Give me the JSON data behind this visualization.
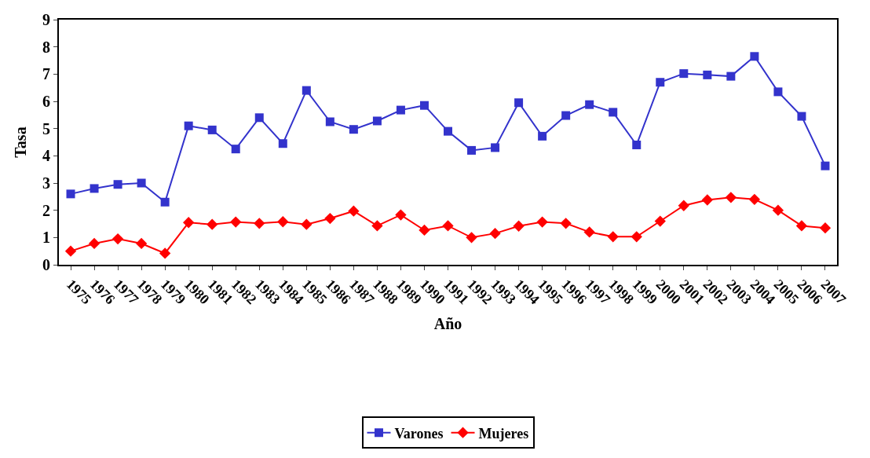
{
  "chart_data": {
    "type": "line",
    "xlabel": "Año",
    "ylabel": "Tasa",
    "categories": [
      "1975",
      "1976",
      "1977",
      "1978",
      "1979",
      "1980",
      "1981",
      "1982",
      "1983",
      "1984",
      "1985",
      "1986",
      "1987",
      "1988",
      "1989",
      "1990",
      "1991",
      "1992",
      "1993",
      "1994",
      "1995",
      "1996",
      "1997",
      "1998",
      "1999",
      "2000",
      "2001",
      "2002",
      "2003",
      "2004",
      "2005",
      "2006",
      "2007"
    ],
    "series": [
      {
        "name": "Varones",
        "color": "#3333cc",
        "marker": "square",
        "values": [
          2.6,
          2.8,
          2.95,
          3.0,
          2.3,
          5.1,
          4.95,
          4.25,
          5.4,
          4.45,
          6.4,
          5.25,
          4.97,
          5.28,
          5.68,
          5.85,
          4.9,
          4.2,
          4.3,
          5.95,
          4.72,
          5.48,
          5.88,
          5.6,
          4.4,
          6.7,
          7.02,
          6.97,
          6.92,
          7.65,
          6.35,
          5.45,
          3.63
        ]
      },
      {
        "name": "Mujeres",
        "color": "#ff0000",
        "marker": "diamond",
        "values": [
          0.5,
          0.78,
          0.95,
          0.78,
          0.42,
          1.55,
          1.48,
          1.57,
          1.52,
          1.58,
          1.48,
          1.7,
          1.97,
          1.43,
          1.83,
          1.27,
          1.43,
          1.0,
          1.15,
          1.42,
          1.57,
          1.52,
          1.2,
          1.03,
          1.03,
          1.6,
          2.17,
          2.38,
          2.47,
          2.4,
          2.0,
          1.43,
          1.35
        ]
      }
    ],
    "ylim": [
      0,
      9
    ],
    "yticks": [
      0,
      1,
      2,
      3,
      4,
      5,
      6,
      7,
      8,
      9
    ],
    "grid": false,
    "legend": "bottom",
    "line_style": "solid"
  }
}
